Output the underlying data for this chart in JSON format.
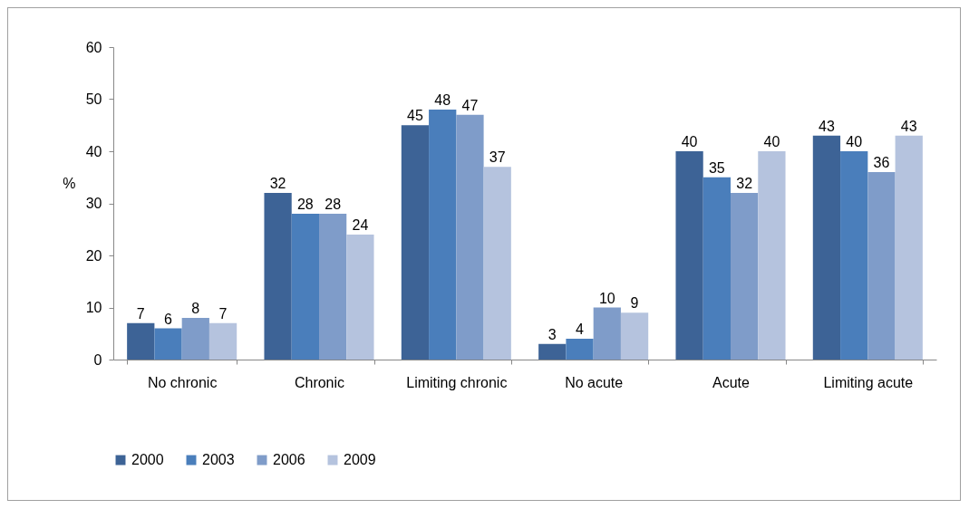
{
  "chart_data": {
    "type": "bar",
    "ylabel": "%",
    "categories": [
      "No chronic",
      "Chronic",
      "Limiting chronic",
      "No acute",
      "Acute",
      "Limiting acute"
    ],
    "series": [
      {
        "name": "2000",
        "color": "#3d6396",
        "values": [
          7,
          32,
          45,
          3,
          40,
          43
        ]
      },
      {
        "name": "2003",
        "color": "#4a7ebb",
        "values": [
          6,
          28,
          48,
          4,
          35,
          40
        ]
      },
      {
        "name": "2006",
        "color": "#7f9cc9",
        "values": [
          8,
          28,
          47,
          10,
          32,
          36
        ]
      },
      {
        "name": "2009",
        "color": "#b5c3de",
        "values": [
          7,
          24,
          37,
          9,
          40,
          43
        ]
      }
    ],
    "ylim": [
      0,
      60
    ],
    "yticks": [
      0,
      10,
      20,
      30,
      40,
      50,
      60
    ],
    "grid": false,
    "legend": "bottom",
    "data_labels": true
  }
}
